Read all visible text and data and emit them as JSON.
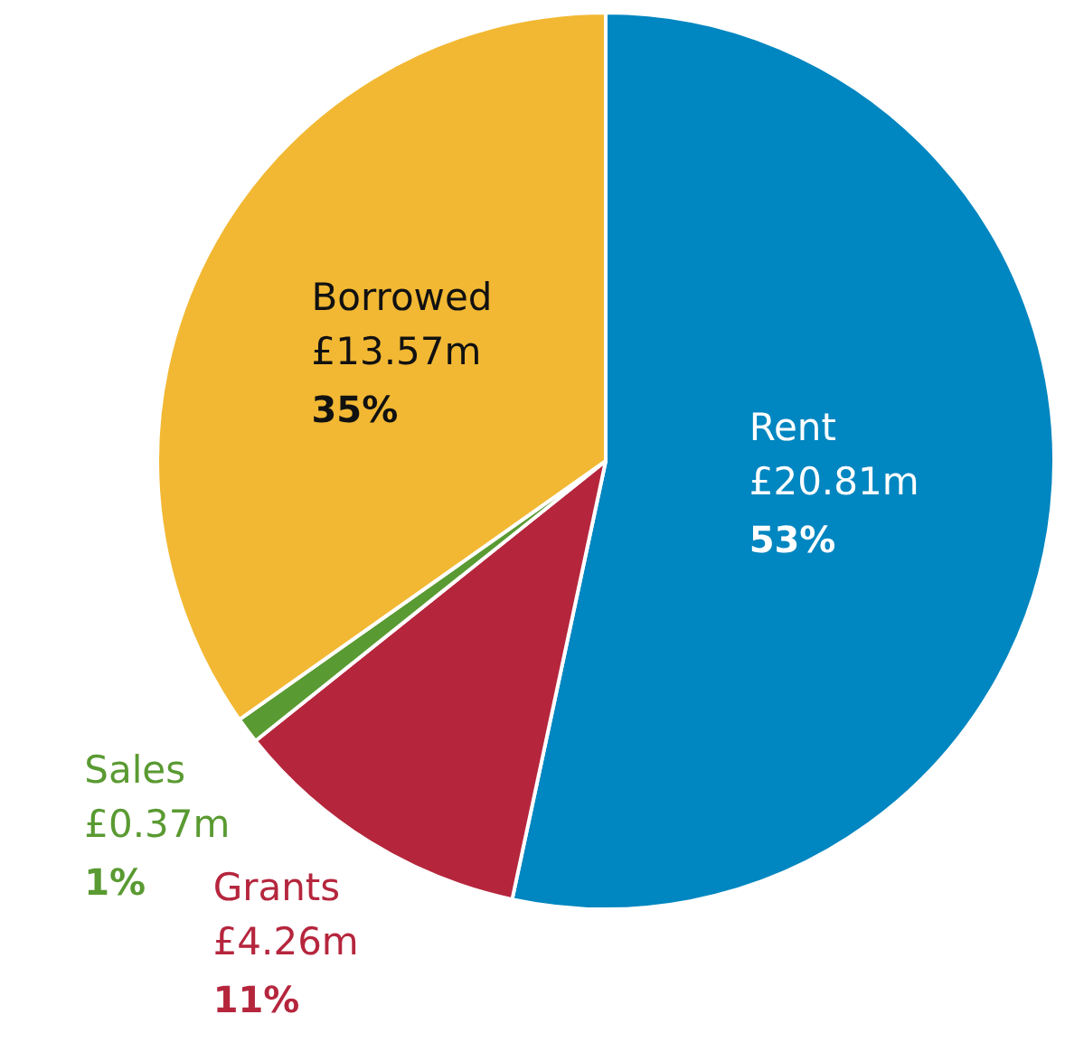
{
  "chart_data": {
    "type": "pie",
    "categories": [
      "Rent",
      "Grants",
      "Sales",
      "Borrowed"
    ],
    "values": [
      20.81,
      4.26,
      0.37,
      13.57
    ],
    "colors": [
      "#0086c0",
      "#b5263d",
      "#5a9a32",
      "#f2b833"
    ],
    "value_labels": [
      "£20.81m",
      "£4.26m",
      "£0.37m",
      "£13.57m"
    ],
    "annotations": [
      "53%",
      "11%",
      "1%",
      "35%"
    ]
  }
}
